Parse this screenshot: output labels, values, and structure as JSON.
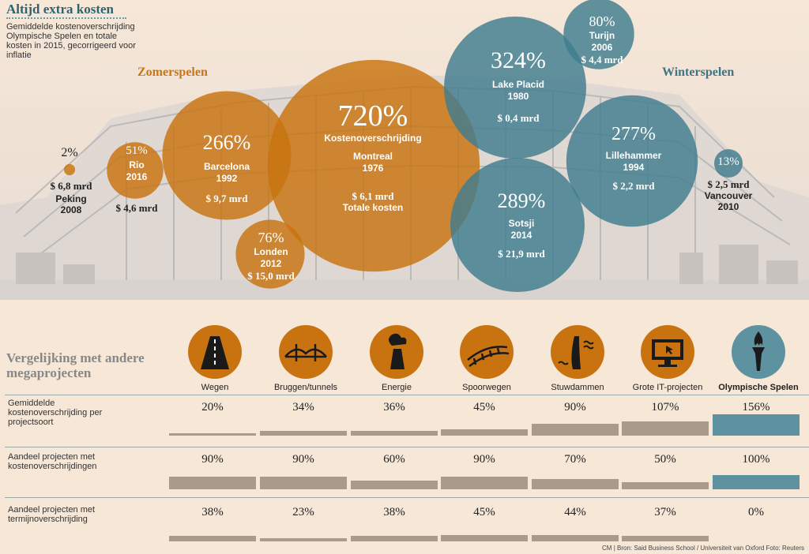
{
  "header": {
    "title": "Altijd extra kosten",
    "subtitle": "Gemiddelde kostenoverschrijding Olympische Spelen en totale kosten in 2015, gecorrigeerd voor inflatie"
  },
  "labels": {
    "summer": "Zomerspelen",
    "winter": "Winterspelen"
  },
  "colors": {
    "summer": "#c8730f",
    "winter": "#3f7d8d",
    "bar": "#aa9a8b",
    "bar_highlight": "#5f92a0",
    "background": "#f6e7d7"
  },
  "bubbles": {
    "peking": {
      "pct": "2%",
      "cost": "$ 6,8 mrd",
      "name": "Peking",
      "year": "2008"
    },
    "rio": {
      "pct": "51%",
      "name": "Rio",
      "year": "2016",
      "cost": "$ 4,6 mrd"
    },
    "barcelona": {
      "pct": "266%",
      "name": "Barcelona",
      "year": "1992",
      "cost": "$ 9,7 mrd"
    },
    "londen": {
      "pct": "76%",
      "name": "Londen",
      "year": "2012",
      "cost": "$ 15,0 mrd"
    },
    "montreal": {
      "pct": "720%",
      "caption": "Kostenoverschrijding",
      "name": "Montreal",
      "year": "1976",
      "cost": "$ 6,1 mrd",
      "cost_caption": "Totale kosten"
    },
    "lakeplacid": {
      "pct": "324%",
      "name": "Lake Placid",
      "year": "1980",
      "cost": "$ 0,4 mrd"
    },
    "turijn": {
      "pct": "80%",
      "name": "Turijn",
      "year": "2006",
      "cost": "$ 4,4 mrd"
    },
    "sotsji": {
      "pct": "289%",
      "name": "Sotsji",
      "year": "2014",
      "cost": "$ 21,9 mrd"
    },
    "lillehammer": {
      "pct": "277%",
      "name": "Lillehammer",
      "year": "1994",
      "cost": "$ 2,2 mrd"
    },
    "vancouver": {
      "pct": "13%",
      "cost": "$ 2,5 mrd",
      "name": "Vancouver",
      "year": "2010"
    }
  },
  "comparison": {
    "title": "Vergelijking met andere megaprojecten",
    "categories": [
      "Wegen",
      "Bruggen/tunnels",
      "Energie",
      "Spoorwegen",
      "Stuwdammen",
      "Grote IT-projecten",
      "Olympische Spelen"
    ],
    "icons": [
      "road-icon",
      "bridge-icon",
      "power-plant-icon",
      "railway-icon",
      "dam-icon",
      "computer-icon",
      "torch-icon"
    ],
    "rows": [
      {
        "label": "Gemiddelde kostenoverschrijding per projectsoort",
        "labels": [
          "20%",
          "34%",
          "36%",
          "45%",
          "90%",
          "107%",
          "156%"
        ]
      },
      {
        "label": "Aandeel projecten met kostenoverschrijdingen",
        "labels": [
          "90%",
          "90%",
          "60%",
          "90%",
          "70%",
          "50%",
          "100%"
        ]
      },
      {
        "label": "Aandeel projecten met termijnoverschrijding",
        "labels": [
          "38%",
          "23%",
          "38%",
          "45%",
          "44%",
          "37%",
          "0%"
        ]
      }
    ]
  },
  "chart_data": {
    "type": "bubble",
    "title": "Altijd extra kosten",
    "series": [
      {
        "name": "Zomerspelen",
        "points": [
          {
            "label": "Peking 2008",
            "overrun_pct": 2,
            "cost_bn_usd": 6.8
          },
          {
            "label": "Rio 2016",
            "overrun_pct": 51,
            "cost_bn_usd": 4.6
          },
          {
            "label": "Barcelona 1992",
            "overrun_pct": 266,
            "cost_bn_usd": 9.7
          },
          {
            "label": "Londen 2012",
            "overrun_pct": 76,
            "cost_bn_usd": 15.0
          },
          {
            "label": "Montreal 1976",
            "overrun_pct": 720,
            "cost_bn_usd": 6.1
          }
        ]
      },
      {
        "name": "Winterspelen",
        "points": [
          {
            "label": "Lake Placid 1980",
            "overrun_pct": 324,
            "cost_bn_usd": 0.4
          },
          {
            "label": "Turijn 2006",
            "overrun_pct": 80,
            "cost_bn_usd": 4.4
          },
          {
            "label": "Sotsji 2014",
            "overrun_pct": 289,
            "cost_bn_usd": 21.9
          },
          {
            "label": "Lillehammer 1994",
            "overrun_pct": 277,
            "cost_bn_usd": 2.2
          },
          {
            "label": "Vancouver 2010",
            "overrun_pct": 13,
            "cost_bn_usd": 2.5
          }
        ]
      }
    ],
    "comparison_bars": {
      "type": "bar",
      "categories": [
        "Wegen",
        "Bruggen/tunnels",
        "Energie",
        "Spoorwegen",
        "Stuwdammen",
        "Grote IT-projecten",
        "Olympische Spelen"
      ],
      "series": [
        {
          "name": "Gemiddelde kostenoverschrijding per projectsoort",
          "values": [
            20,
            34,
            36,
            45,
            90,
            107,
            156
          ]
        },
        {
          "name": "Aandeel projecten met kostenoverschrijdingen",
          "values": [
            90,
            90,
            60,
            90,
            70,
            50,
            100
          ]
        },
        {
          "name": "Aandeel projecten met termijnoverschrijding",
          "values": [
            38,
            23,
            38,
            45,
            44,
            37,
            0
          ]
        }
      ]
    }
  },
  "source": "CM | Bron: Said Business School / Universiteit van Oxford  Foto: Reuters"
}
